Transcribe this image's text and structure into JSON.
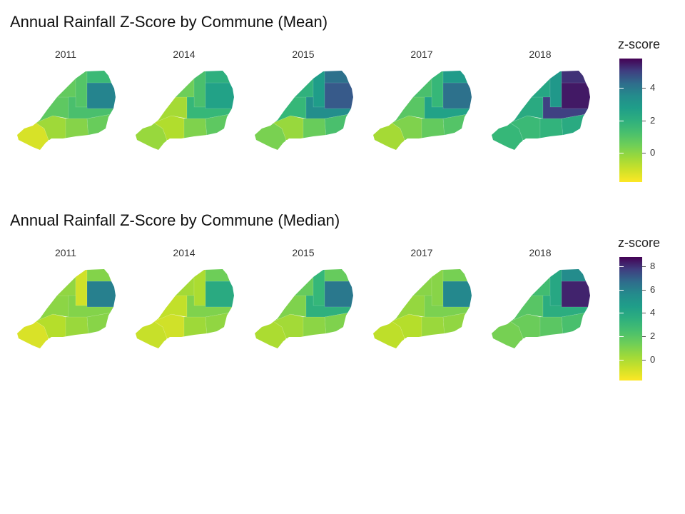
{
  "panels": [
    {
      "title": "Annual Rainfall Z-Score by Commune (Mean)",
      "legend": {
        "title": "z-score",
        "min": -1.8,
        "max": 5.8,
        "ticks": [
          0,
          2,
          4
        ]
      },
      "facets": [
        {
          "year": "2011",
          "zones": {
            "west": -1.2,
            "southwest": -0.3,
            "south": 0.1,
            "southeast": 0.6,
            "center": 0.8,
            "northwest": 0.7,
            "north": 1.0,
            "eastblock": 3.8,
            "northeast": 1.5,
            "east": 1.2
          }
        },
        {
          "year": "2014",
          "zones": {
            "west": -0.2,
            "southwest": -0.6,
            "south": 0.2,
            "southeast": 0.8,
            "center": -0.4,
            "northwest": 0.5,
            "north": 1.2,
            "eastblock": 2.6,
            "northeast": 2.0,
            "east": 1.6
          }
        },
        {
          "year": "2015",
          "zones": {
            "west": 0.3,
            "southwest": -0.2,
            "south": 0.6,
            "southeast": 1.2,
            "center": 1.6,
            "northwest": 1.9,
            "north": 2.8,
            "eastblock": 4.6,
            "northeast": 4.2,
            "east": 3.4
          }
        },
        {
          "year": "2017",
          "zones": {
            "west": -0.4,
            "southwest": 0.2,
            "south": 0.7,
            "southeast": 1.0,
            "center": 0.9,
            "northwest": 1.2,
            "north": 1.6,
            "eastblock": 4.2,
            "northeast": 2.9,
            "east": 2.6
          }
        },
        {
          "year": "2018",
          "zones": {
            "west": 1.6,
            "southwest": 1.5,
            "south": 1.8,
            "southeast": 2.2,
            "center": 2.2,
            "northwest": 2.4,
            "north": 3.0,
            "eastblock": 5.5,
            "northeast": 5.2,
            "east": 5.0
          }
        }
      ]
    },
    {
      "title": "Annual Rainfall Z-Score by Commune (Median)",
      "legend": {
        "title": "z-score",
        "min": -1.8,
        "max": 8.8,
        "ticks": [
          0,
          2,
          4,
          6,
          8
        ]
      },
      "facets": [
        {
          "year": "2011",
          "zones": {
            "west": -1.0,
            "southwest": -0.2,
            "south": 0.4,
            "southeast": 0.8,
            "center": 0.7,
            "northwest": 0.6,
            "north": -0.8,
            "eastblock": 6.2,
            "northeast": 0.9,
            "east": 0.9
          }
        },
        {
          "year": "2014",
          "zones": {
            "west": -0.6,
            "southwest": -0.8,
            "south": 0.3,
            "southeast": 0.6,
            "center": -0.5,
            "northwest": 0.2,
            "north": 0.0,
            "eastblock": 3.8,
            "northeast": 1.4,
            "east": 1.0
          }
        },
        {
          "year": "2015",
          "zones": {
            "west": 0.0,
            "southwest": 0.2,
            "south": 0.7,
            "southeast": 1.0,
            "center": 1.0,
            "northwest": 1.6,
            "north": 3.0,
            "eastblock": 6.4,
            "northeast": 1.6,
            "east": 3.4
          }
        },
        {
          "year": "2017",
          "zones": {
            "west": -0.4,
            "southwest": -0.2,
            "south": 0.4,
            "southeast": 0.6,
            "center": 0.5,
            "northwest": 0.8,
            "north": 0.8,
            "eastblock": 5.8,
            "northeast": 1.2,
            "east": 1.1
          }
        },
        {
          "year": "2018",
          "zones": {
            "west": 1.2,
            "southwest": 1.5,
            "south": 1.9,
            "southeast": 2.4,
            "center": 2.0,
            "northwest": 2.6,
            "north": 4.0,
            "eastblock": 8.2,
            "northeast": 5.6,
            "east": 3.6
          }
        }
      ]
    }
  ]
}
